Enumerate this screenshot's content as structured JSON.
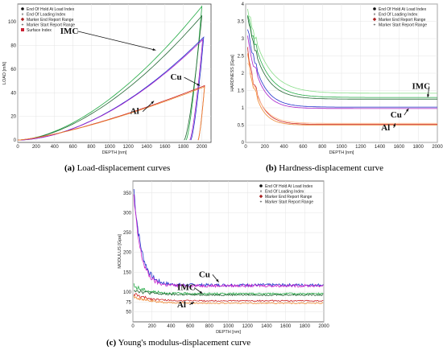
{
  "chart_data": [
    {
      "id": "a",
      "type": "line",
      "caption_tag": "(a)",
      "caption_text": "Load-displacement curves",
      "xlabel": "DEPTH [nm]",
      "ylabel": "LOAD [mN]",
      "xlim": [
        0,
        2100
      ],
      "ylim": [
        -2,
        115
      ],
      "xticks": [
        0,
        200,
        400,
        600,
        800,
        1000,
        1200,
        1400,
        1600,
        1800,
        2000
      ],
      "yticks": [
        0,
        20,
        40,
        60,
        80,
        100
      ],
      "legend": [
        "End Of Hold At Load Index",
        "End Of Loading Index",
        "Marker End Report Range",
        "Marker Start Report Range",
        "Surface Index"
      ],
      "legend_position": "top-left",
      "annotations": [
        {
          "text": "IMC",
          "x": 560,
          "y": 90,
          "tx": 1500,
          "ty": 76
        },
        {
          "text": "Cu",
          "x": 1720,
          "y": 51,
          "tx": 1980,
          "ty": 46
        },
        {
          "text": "Al",
          "x": 1270,
          "y": 22,
          "tx": 1480,
          "ty": 33
        }
      ],
      "series": [
        {
          "color": "#22aa44",
          "peak": 113,
          "xmax": 2000,
          "unload_end": 1830,
          "power": 1.7
        },
        {
          "color": "#226633",
          "peak": 105,
          "xmax": 2000,
          "unload_end": 1810,
          "power": 1.7
        },
        {
          "color": "#2233cc",
          "peak": 87,
          "xmax": 2020,
          "unload_end": 1880,
          "power": 1.8
        },
        {
          "color": "#aa22cc",
          "peak": 85,
          "xmax": 2010,
          "unload_end": 1870,
          "power": 1.8
        },
        {
          "color": "#cc2222",
          "peak": 46,
          "xmax": 2030,
          "unload_end": 1960,
          "power": 1.35
        },
        {
          "color": "#ee8833",
          "peak": 45,
          "xmax": 2030,
          "unload_end": 1960,
          "power": 1.35
        }
      ]
    },
    {
      "id": "b",
      "type": "line",
      "caption_tag": "(b)",
      "caption_text": "Hardness-displacement curve",
      "xlabel": "DEPTH [nm]",
      "ylabel": "HARDNESS [Gpa]",
      "xlim": [
        0,
        2000
      ],
      "ylim": [
        0,
        4
      ],
      "xticks": [
        0,
        200,
        400,
        600,
        800,
        1000,
        1200,
        1400,
        1600,
        1800,
        2000
      ],
      "yticks": [
        0,
        0.5,
        1,
        1.5,
        2,
        2.5,
        3,
        3.5,
        4
      ],
      "legend": [
        "End Of Hold At Load Index",
        "End Of Loading Index",
        "Marker End Report Range",
        "Marker Start Report Range"
      ],
      "legend_position": "top-right",
      "annotations": [
        {
          "text": "IMC",
          "x": 1830,
          "y": 1.55,
          "tx": 1900,
          "ty": 1.3
        },
        {
          "text": "Cu",
          "x": 1570,
          "y": 0.72,
          "tx": 1700,
          "ty": 0.98
        },
        {
          "text": "Al",
          "x": 1460,
          "y": 0.35,
          "tx": 1560,
          "ty": 0.55
        }
      ],
      "series": [
        {
          "color": "#88dd88",
          "start": 3.9,
          "end": 1.42,
          "k": 180
        },
        {
          "color": "#22aa44",
          "start": 3.8,
          "end": 1.3,
          "k": 160
        },
        {
          "color": "#226633",
          "start": 3.6,
          "end": 1.25,
          "k": 150
        },
        {
          "color": "#2233cc",
          "start": 3.3,
          "end": 1.02,
          "k": 130
        },
        {
          "color": "#aa22cc",
          "start": 3.2,
          "end": 0.98,
          "k": 120
        },
        {
          "color": "#cc2222",
          "start": 2.7,
          "end": 0.52,
          "k": 110
        },
        {
          "color": "#ee8833",
          "start": 2.6,
          "end": 0.5,
          "k": 100
        },
        {
          "color": "#ffbb88",
          "start": 2.4,
          "end": 0.55,
          "k": 120
        }
      ]
    },
    {
      "id": "c",
      "type": "line",
      "caption_tag": "(c)",
      "caption_text": "Young's modulus-displacement curve",
      "xlabel": "DEPTH [nm]",
      "ylabel": "MODULUS [Gpa]",
      "xlim": [
        0,
        2000
      ],
      "ylim": [
        25,
        380
      ],
      "xticks": [
        0,
        200,
        400,
        600,
        800,
        1000,
        1200,
        1400,
        1600,
        1800,
        2000
      ],
      "yticks": [
        50,
        75,
        100,
        150,
        200,
        250,
        300,
        350
      ],
      "legend": [
        "End Of Hold At Load Index",
        "End Of Loading Index",
        "Marker End Report Range",
        "Marker Start Report Range"
      ],
      "legend_position": "top-right",
      "annotations": [
        {
          "text": "Cu",
          "x": 750,
          "y": 138,
          "tx": 900,
          "ty": 125
        },
        {
          "text": "IMC",
          "x": 560,
          "y": 105,
          "tx": 730,
          "ty": 96
        },
        {
          "text": "Al",
          "x": 510,
          "y": 62,
          "tx": 640,
          "ty": 75
        }
      ],
      "series": [
        {
          "color": "#2233cc",
          "start": 360,
          "end": 118,
          "k": 80,
          "noise": 7
        },
        {
          "color": "#cc22cc",
          "start": 340,
          "end": 116,
          "k": 75,
          "noise": 7
        },
        {
          "color": "#22aa44",
          "start": 115,
          "end": 96,
          "k": 150,
          "noise": 4
        },
        {
          "color": "#226633",
          "start": 108,
          "end": 93,
          "k": 150,
          "noise": 4
        },
        {
          "color": "#cc2222",
          "start": 95,
          "end": 78,
          "k": 150,
          "noise": 3
        },
        {
          "color": "#ee8833",
          "start": 90,
          "end": 72,
          "k": 150,
          "noise": 3
        }
      ]
    }
  ],
  "legend_marker_colors": [
    "#111111",
    "#555555",
    "#aa2222",
    "#555555",
    "#cc2233"
  ]
}
